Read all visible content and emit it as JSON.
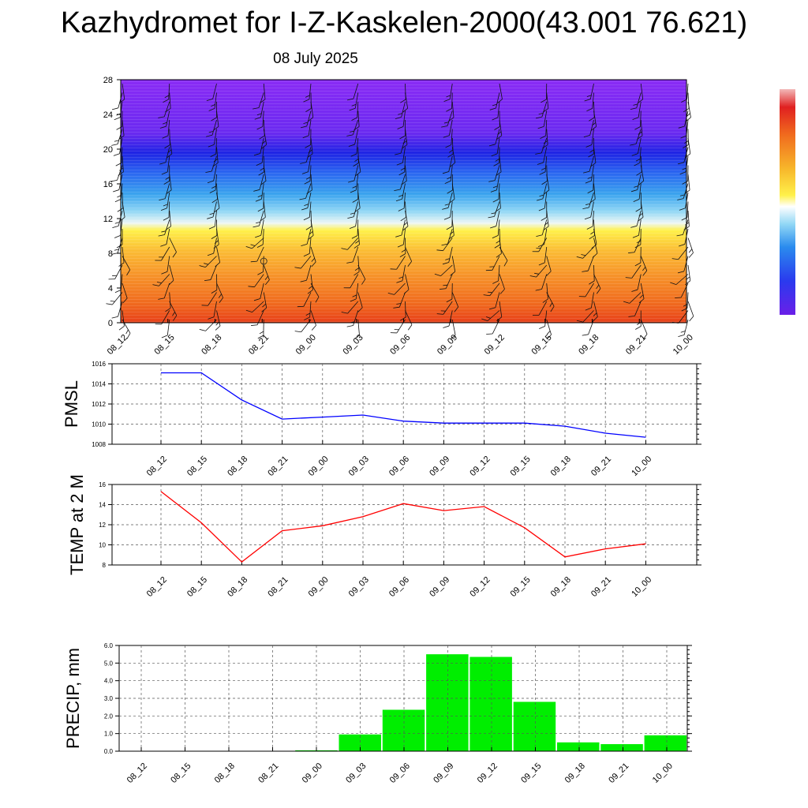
{
  "title": "Kazhydromet for I-Z-Kaskelen-2000(43.001 76.621)",
  "subtitle": "08 July 2025",
  "colors": {
    "pmsl_line": "#0000ff",
    "temp_line": "#ff0000",
    "precip_bar": "#00ee00"
  },
  "chart_data": [
    {
      "type": "heatmap",
      "name": "vertical_profile",
      "x_ticks": [
        "08_12",
        "08_15",
        "08_18",
        "08_21",
        "09_00",
        "09_03",
        "09_06",
        "09_09",
        "09_12",
        "09_15",
        "09_18",
        "09_21",
        "10_00"
      ],
      "y_ticks": [
        "0",
        "4",
        "8",
        "12",
        "16",
        "20",
        "24",
        "28"
      ],
      "ylim": [
        0,
        28
      ],
      "colorbar": true,
      "wind_barbs": true
    },
    {
      "type": "line",
      "name": "pmsl",
      "ylabel": "PMSL",
      "x": [
        "08_12",
        "08_15",
        "08_18",
        "08_21",
        "09_00",
        "09_03",
        "09_06",
        "09_09",
        "09_12",
        "09_15",
        "09_18",
        "09_21",
        "10_00"
      ],
      "values": [
        1015.1,
        1015.1,
        1012.4,
        1010.5,
        1010.7,
        1010.9,
        1010.3,
        1010.1,
        1010.1,
        1010.1,
        1009.8,
        1009.1,
        1008.7
      ],
      "y_ticks": [
        "1008",
        "1010",
        "1012",
        "1014",
        "1016"
      ],
      "ylim": [
        1008,
        1016
      ],
      "grid": true
    },
    {
      "type": "line",
      "name": "temp",
      "ylabel": "TEMP at 2 M",
      "x": [
        "08_12",
        "08_15",
        "08_18",
        "08_21",
        "09_00",
        "09_03",
        "09_06",
        "09_09",
        "09_12",
        "09_15",
        "09_18",
        "09_21",
        "10_00"
      ],
      "values": [
        15.3,
        12.2,
        8.3,
        11.4,
        11.9,
        12.8,
        14.1,
        13.4,
        13.8,
        11.7,
        8.8,
        9.6,
        10.1
      ],
      "y_ticks": [
        "8",
        "10",
        "12",
        "14",
        "16"
      ],
      "ylim": [
        8,
        16
      ],
      "grid": true
    },
    {
      "type": "bar",
      "name": "precip",
      "ylabel": "PRECIP, mm",
      "categories": [
        "08_12",
        "08_15",
        "08_18",
        "08_21",
        "09_00",
        "09_03",
        "09_06",
        "09_09",
        "09_12",
        "09_15",
        "09_18",
        "09_21",
        "10_00"
      ],
      "values": [
        0,
        0,
        0,
        0,
        0.05,
        0.95,
        2.35,
        5.5,
        5.35,
        2.8,
        0.5,
        0.4,
        0.9
      ],
      "y_ticks": [
        "0.0",
        "1.0",
        "2.0",
        "3.0",
        "4.0",
        "5.0",
        "6.0"
      ],
      "ylim": [
        0,
        6
      ],
      "grid": true
    }
  ]
}
